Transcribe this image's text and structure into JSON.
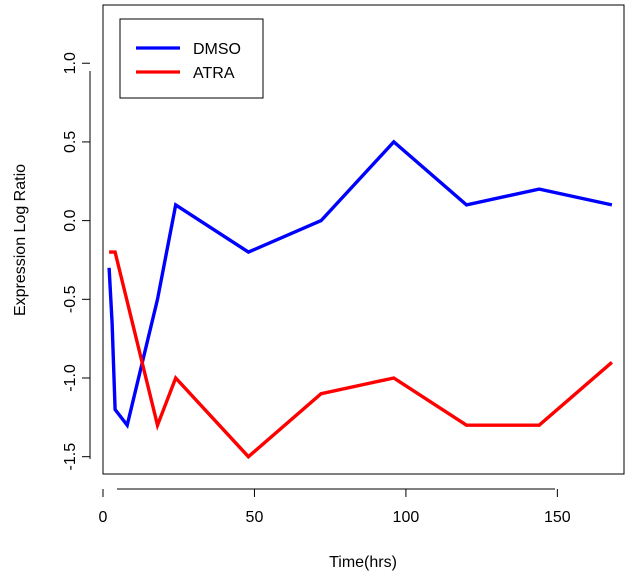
{
  "chart_data": {
    "type": "line",
    "title": "",
    "xlabel": "Time(hrs)",
    "ylabel": "Expression Log Ratio",
    "xlim": [
      0,
      172
    ],
    "ylim": [
      -1.61,
      1.37
    ],
    "xticks": [
      0,
      50,
      100,
      150
    ],
    "xtick_labels": [
      "0",
      "50",
      "100",
      "150"
    ],
    "yticks": [
      -1.5,
      -1.0,
      -0.5,
      0.0,
      0.5,
      1.0
    ],
    "ytick_labels": [
      "-1.5",
      "-1.0",
      "-0.5",
      "0.0",
      "0.5",
      "1.0"
    ],
    "grid": false,
    "legend_position": "top-left",
    "series": [
      {
        "name": "DMSO",
        "color": "#0000ff",
        "x": [
          2,
          3,
          4,
          8,
          18,
          24,
          48,
          72,
          96,
          120,
          144,
          168
        ],
        "y": [
          -0.3,
          -0.65,
          -1.2,
          -1.3,
          -0.5,
          0.1,
          -0.2,
          0.0,
          0.5,
          0.1,
          0.2,
          0.1
        ]
      },
      {
        "name": "ATRA",
        "color": "#ff0000",
        "x": [
          2,
          4,
          18,
          24,
          48,
          72,
          96,
          120,
          144,
          168
        ],
        "y": [
          -0.2,
          -0.2,
          -1.3,
          -1.0,
          -1.5,
          -1.1,
          -1.0,
          -1.3,
          -1.3,
          -0.9
        ]
      }
    ]
  }
}
